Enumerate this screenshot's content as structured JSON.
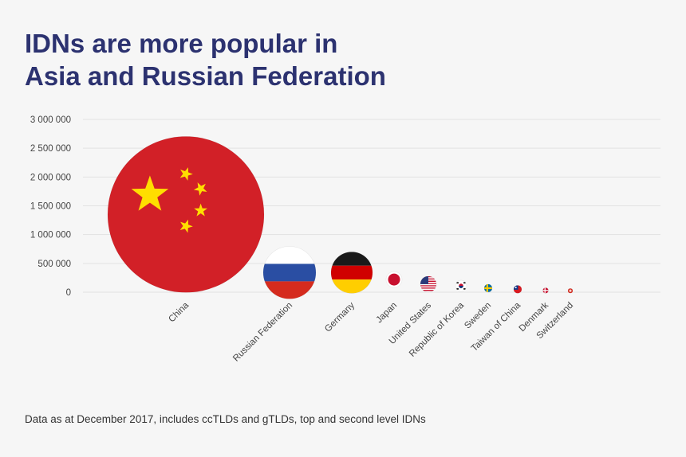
{
  "title_lines": [
    "IDNs are more popular in",
    "Asia and Russian Federation"
  ],
  "footnote": "Data as at December 2017, includes ccTLDs and gTLDs, top and second level IDNs",
  "colors": {
    "title": "#2c3270",
    "grid": "#e2e2e2",
    "tick_text": "#444444",
    "background": "#f6f6f6"
  },
  "chart_data": {
    "type": "bubble",
    "y_ticks": [
      "3 000 000",
      "2 500 000",
      "2 000 000",
      "1 500 000",
      "1 000 000",
      "500 000",
      "0"
    ],
    "ylim": [
      0,
      3000000
    ],
    "grid": true,
    "points": [
      {
        "category": "China",
        "value": 1350000,
        "flag": "china-flag-icon"
      },
      {
        "category": "Russian Federation",
        "value": 340000,
        "flag": "russia-flag-icon"
      },
      {
        "category": "Germany",
        "value": 340000,
        "flag": "germany-flag-icon"
      },
      {
        "category": "Japan",
        "value": 220000,
        "flag": "japan-flag-icon"
      },
      {
        "category": "United States",
        "value": 140000,
        "flag": "usa-flag-icon"
      },
      {
        "category": "Republic of Korea",
        "value": 110000,
        "flag": "korea-flag-icon"
      },
      {
        "category": "Sweden",
        "value": 70000,
        "flag": "sweden-flag-icon"
      },
      {
        "category": "Taiwan of China",
        "value": 50000,
        "flag": "taiwan-flag-icon"
      },
      {
        "category": "Denmark",
        "value": 30000,
        "flag": "denmark-flag-icon"
      },
      {
        "category": "Switzerland",
        "value": 25000,
        "flag": "switzerland-flag-icon"
      }
    ]
  }
}
